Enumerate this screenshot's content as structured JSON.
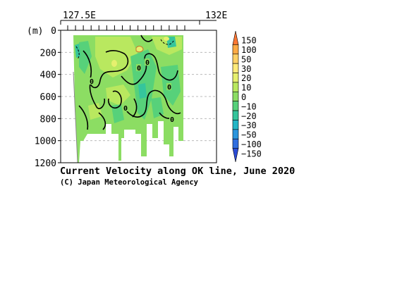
{
  "chart_data": {
    "type": "heatmap",
    "title": "Current Velocity along OK line, June 2020",
    "credit": "(C) Japan Meteorological Agency",
    "x_ticks": [
      "127.5E",
      "132E"
    ],
    "y_unit": "(m)",
    "y_ticks": [
      "0",
      "200",
      "400",
      "600",
      "800",
      "1000",
      "1200"
    ],
    "y_tick_values": [
      0,
      200,
      400,
      600,
      800,
      1000,
      1200
    ],
    "ylim": [
      0,
      1200
    ],
    "grid": "dashed horizontal",
    "colorbar": {
      "labels": [
        "150",
        "100",
        "50",
        "30",
        "20",
        "10",
        "0",
        "−10",
        "−20",
        "−30",
        "−50",
        "−100",
        "−150"
      ],
      "colors": [
        "#ff7733",
        "#ffaa44",
        "#ffd166",
        "#ffeb7a",
        "#e6f06e",
        "#b9e85f",
        "#8cdd63",
        "#57d17a",
        "#35c59c",
        "#22b6c6",
        "#2a95dd",
        "#2f6ee0",
        "#2a4bd6"
      ]
    },
    "contour_labels": [
      "0",
      "0",
      "0",
      "0",
      "0",
      "0"
    ]
  }
}
